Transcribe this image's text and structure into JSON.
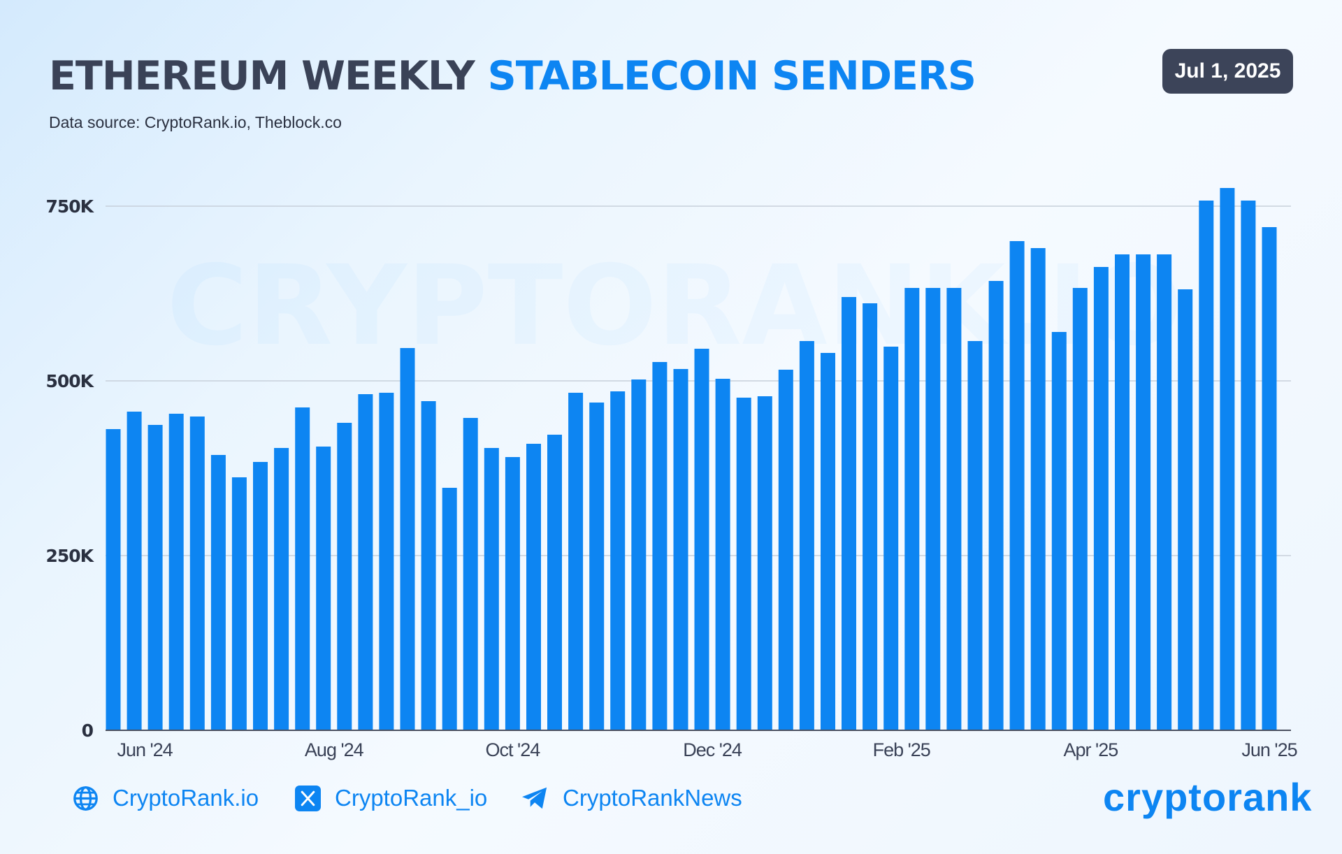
{
  "header": {
    "title_main": "ETHEREUM WEEKLY",
    "title_accent": "STABLECOIN SENDERS",
    "subtitle": "Data source: CryptoRank.io, Theblock.co",
    "date_badge": "Jul 1, 2025"
  },
  "chart_data": {
    "type": "bar",
    "title": "ETHEREUM WEEKLY STABLECOIN SENDERS",
    "xlabel": "",
    "ylabel": "",
    "ylim": [
      0,
      750000
    ],
    "yticks": [
      0,
      250000,
      500000,
      750000
    ],
    "ytick_labels": [
      "0",
      "250K",
      "500K",
      "750K"
    ],
    "xtick_labels": [
      "Jun '24",
      "Aug '24",
      "Oct '24",
      "Dec '24",
      "Feb '25",
      "Apr '25",
      "Jun '25"
    ],
    "xtick_bar_index": [
      1.5,
      10.5,
      19,
      28.5,
      37.5,
      46.5,
      55
    ],
    "grid": true,
    "bar_color": "#0d85f2",
    "values": [
      431000,
      456000,
      437000,
      453000,
      449000,
      394000,
      362000,
      384000,
      404000,
      462000,
      406000,
      440000,
      481000,
      483000,
      547000,
      471000,
      347000,
      447000,
      404000,
      391000,
      410000,
      423000,
      483000,
      469000,
      485000,
      502000,
      527000,
      517000,
      546000,
      503000,
      476000,
      478000,
      516000,
      557000,
      540000,
      620000,
      611000,
      549000,
      633000,
      633000,
      633000,
      557000,
      643000,
      700000,
      690000,
      570000,
      633000,
      663000,
      681000,
      681000,
      681000,
      631000,
      758000,
      776000,
      758000,
      720000
    ]
  },
  "watermark": "CRYPTORANK.IO",
  "footer": {
    "website": "CryptoRank.io",
    "twitter": "CryptoRank_io",
    "telegram": "CryptoRankNews",
    "logo_text": "cryptorank",
    "icons": [
      "globe-icon",
      "x-twitter-icon",
      "telegram-icon"
    ]
  }
}
